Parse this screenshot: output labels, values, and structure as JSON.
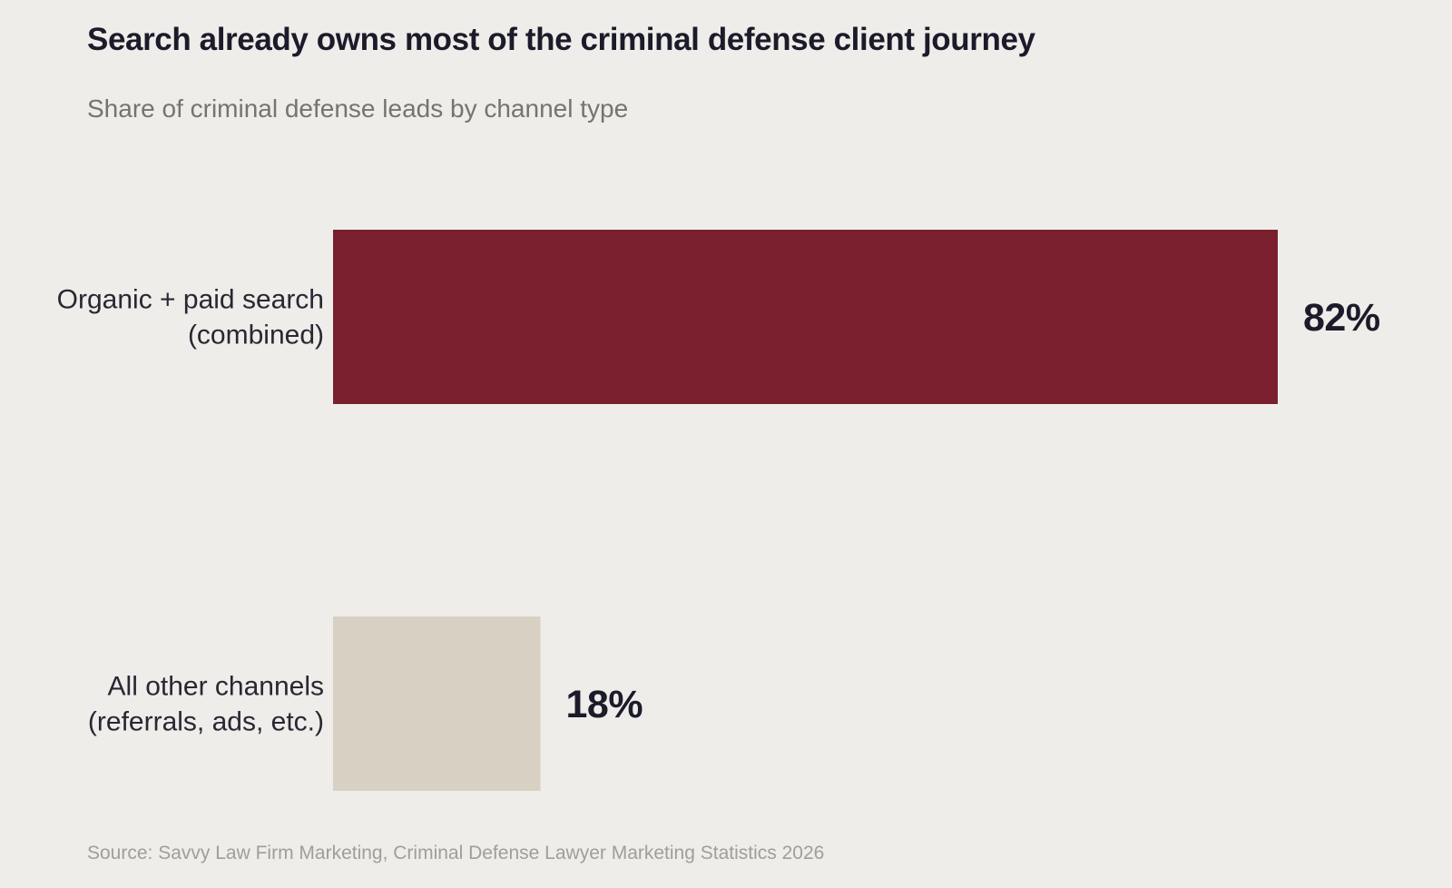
{
  "chart_data": {
    "type": "bar",
    "orientation": "horizontal",
    "title": "Search already owns most of the criminal defense client journey",
    "subtitle": "Share of criminal defense leads by channel type",
    "source": "Source: Savvy Law Firm Marketing, Criminal Defense Lawyer Marketing Statistics 2026",
    "categories": [
      [
        "Organic + paid search",
        "(combined)"
      ],
      [
        "All other channels",
        "(referrals, ads, etc.)"
      ]
    ],
    "values": [
      82,
      18
    ],
    "value_labels": [
      "82%",
      "18%"
    ],
    "value_unit": "%",
    "colors": [
      "#7a1f2e",
      "#d8d0c3"
    ],
    "xlim": [
      0,
      82
    ],
    "grid": false,
    "legend": "none"
  }
}
